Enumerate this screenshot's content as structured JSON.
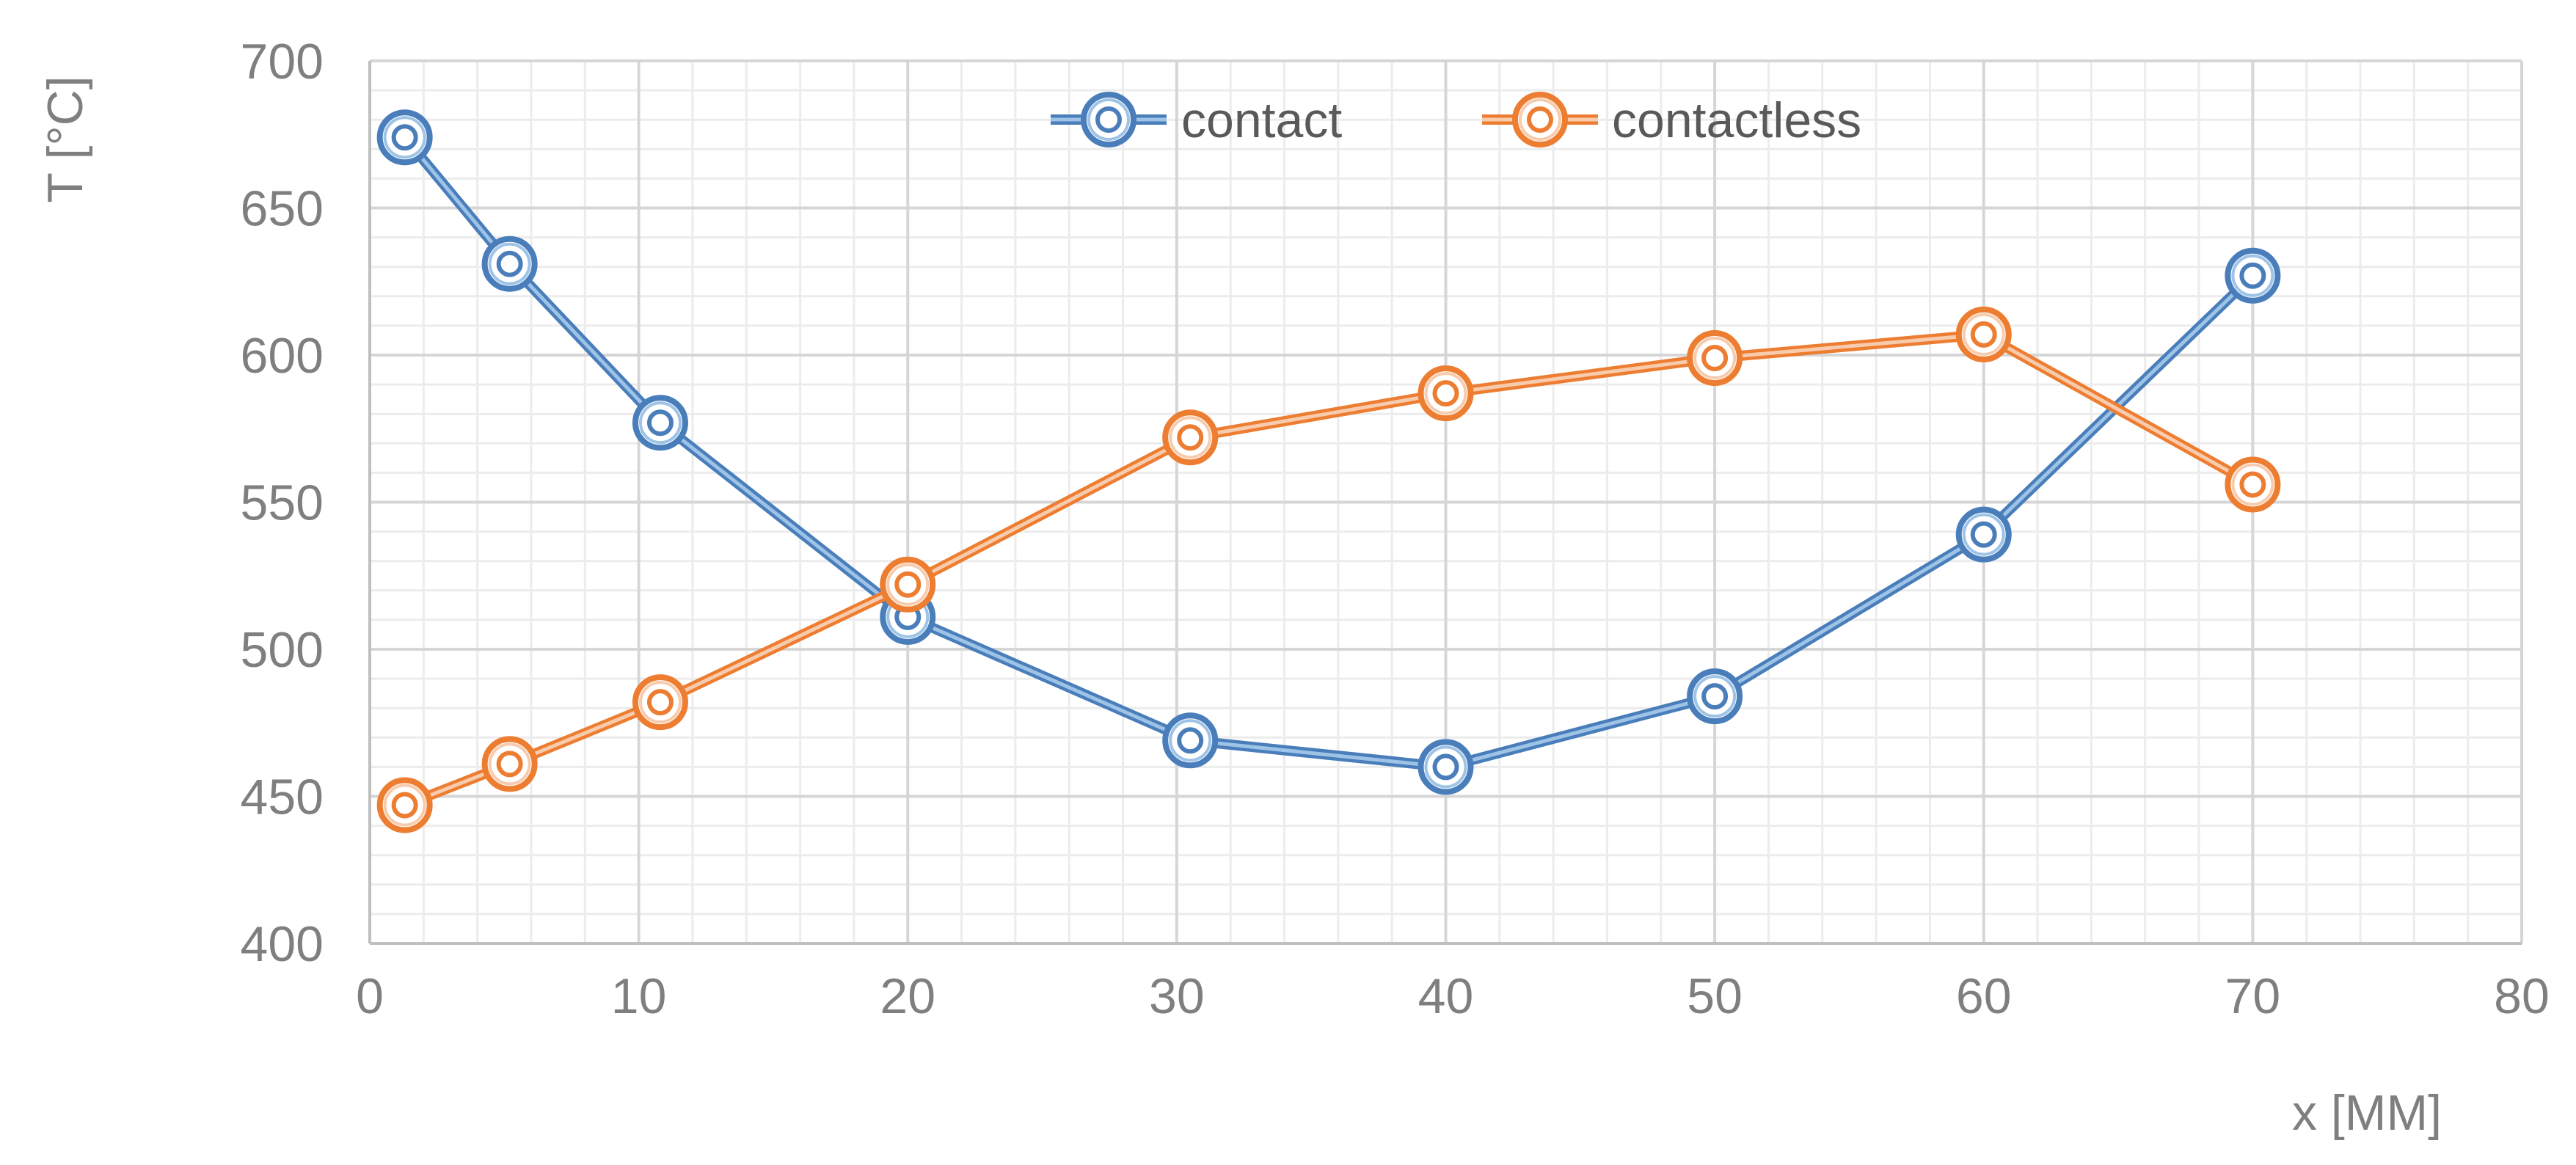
{
  "chart_data": {
    "type": "line",
    "title": "",
    "xlabel": "x [MM]",
    "ylabel": "T  [°C]",
    "xlim": [
      0,
      80
    ],
    "ylim": [
      400,
      700
    ],
    "x_ticks": [
      0,
      10,
      20,
      30,
      40,
      50,
      60,
      70,
      80
    ],
    "y_ticks": [
      400,
      450,
      500,
      550,
      600,
      650,
      700
    ],
    "grid": {
      "major": true,
      "minor": true
    },
    "legend": {
      "position": "top-center",
      "orientation": "horizontal"
    },
    "series": [
      {
        "name": "contact",
        "color": "#4a7ebb",
        "light_color": "#9dc3e6",
        "marker": "double-circle",
        "x": [
          1.3,
          5.2,
          10.8,
          20,
          30.5,
          40,
          50,
          60,
          70
        ],
        "y": [
          674,
          631,
          577,
          511,
          469,
          460,
          484,
          539,
          627
        ]
      },
      {
        "name": "contactless",
        "color": "#ed7d31",
        "light_color": "#f8cbad",
        "marker": "double-circle",
        "x": [
          1.3,
          5.2,
          10.8,
          20,
          30.5,
          40,
          50,
          60,
          70
        ],
        "y": [
          447,
          461,
          482,
          522,
          572,
          587,
          599,
          607,
          556
        ]
      }
    ]
  }
}
